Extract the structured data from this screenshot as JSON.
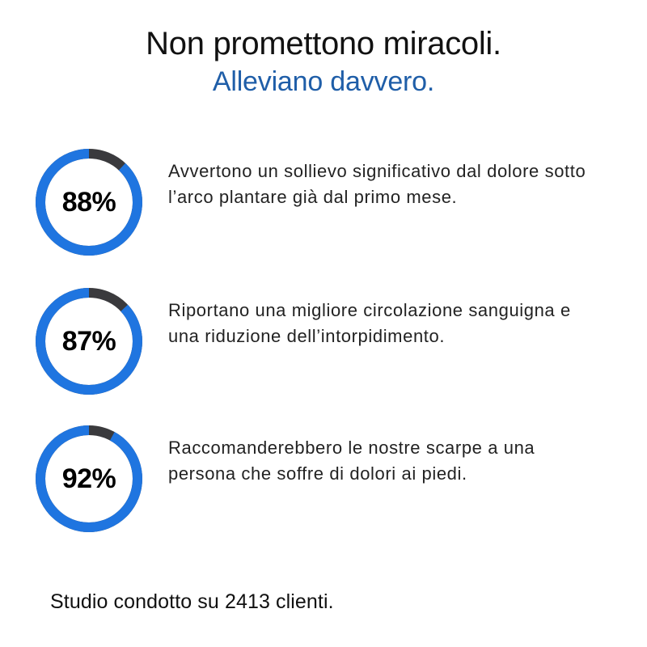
{
  "headline": {
    "line1": "Non promettono miracoli.",
    "line2": "Alleviano davvero."
  },
  "colors": {
    "accent": "#1f75e0",
    "headline_blue": "#1f5ea8",
    "ring_track": "#3a3a3d",
    "text": "#111111"
  },
  "stats": [
    {
      "percent": 88,
      "label": "88%",
      "text": "Avvertono un sollievo significativo dal dolore sotto l’arco plantare già dal primo mese."
    },
    {
      "percent": 87,
      "label": "87%",
      "text": "Riportano una migliore circolazione sanguigna e una riduzione dell’intorpidimento."
    },
    {
      "percent": 92,
      "label": "92%",
      "text": "Raccomanderebbero le nostre scarpe a una persona che soffre di dolori ai piedi."
    }
  ],
  "footer": "Studio condotto su 2413 clienti."
}
